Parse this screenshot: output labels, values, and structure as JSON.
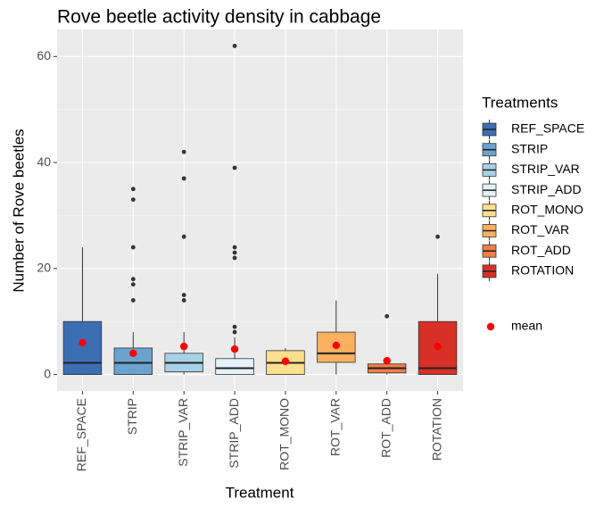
{
  "chart_data": {
    "type": "boxplot",
    "title": "Rove beetle activity density in cabbage",
    "x_label": "Treatment",
    "y_label": "Number of Rove beetles",
    "categories": [
      "REF_SPACE",
      "STRIP",
      "STRIP_VAR",
      "STRIP_ADD",
      "ROT_MONO",
      "ROT_VAR",
      "ROT_ADD",
      "ROTATION"
    ],
    "ylim": [
      -3.1,
      65.1
    ],
    "yticks": [
      0,
      20,
      40,
      60
    ],
    "grid": true,
    "legend_title": "Treatments",
    "legend_position": "right",
    "mean_label": "mean",
    "mean_color": "#ff0000",
    "series": [
      {
        "name": "REF_SPACE",
        "color": "#3c6eb4",
        "low": 0,
        "q1": 0,
        "median": 2.2,
        "q3": 10,
        "high": 24,
        "outliers": [],
        "mean": 6
      },
      {
        "name": "STRIP",
        "color": "#6aa3d0",
        "low": 0,
        "q1": 0,
        "median": 2.2,
        "q3": 5,
        "high": 8,
        "outliers": [
          14,
          17,
          18,
          24,
          33,
          35
        ],
        "mean": 4
      },
      {
        "name": "STRIP_VAR",
        "color": "#a6d1e6",
        "low": 0,
        "q1": 0.5,
        "median": 2.2,
        "q3": 4,
        "high": 8,
        "outliers": [
          14,
          15,
          26,
          37,
          42
        ],
        "mean": 5.3
      },
      {
        "name": "STRIP_ADD",
        "color": "#e3f1f8",
        "low": 0,
        "q1": 0,
        "median": 1.2,
        "q3": 3,
        "high": 7,
        "outliers": [
          8,
          9,
          22,
          23,
          24,
          39,
          62
        ],
        "mean": 4.8
      },
      {
        "name": "ROT_MONO",
        "color": "#fddf8e",
        "low": 0,
        "q1": 0,
        "median": 2.2,
        "q3": 4.5,
        "high": 5,
        "outliers": [],
        "mean": 2.5
      },
      {
        "name": "ROT_VAR",
        "color": "#fbb060",
        "low": 0,
        "q1": 2.3,
        "median": 4,
        "q3": 8,
        "high": 14,
        "outliers": [],
        "mean": 5.5
      },
      {
        "name": "ROT_ADD",
        "color": "#f07d4a",
        "low": 0,
        "q1": 0.3,
        "median": 1.2,
        "q3": 2,
        "high": 2,
        "outliers": [
          11
        ],
        "mean": 2.6
      },
      {
        "name": "ROTATION",
        "color": "#d73027",
        "low": 0,
        "q1": 0,
        "median": 1.2,
        "q3": 10,
        "high": 19,
        "outliers": [
          26
        ],
        "mean": 5.3
      }
    ]
  }
}
